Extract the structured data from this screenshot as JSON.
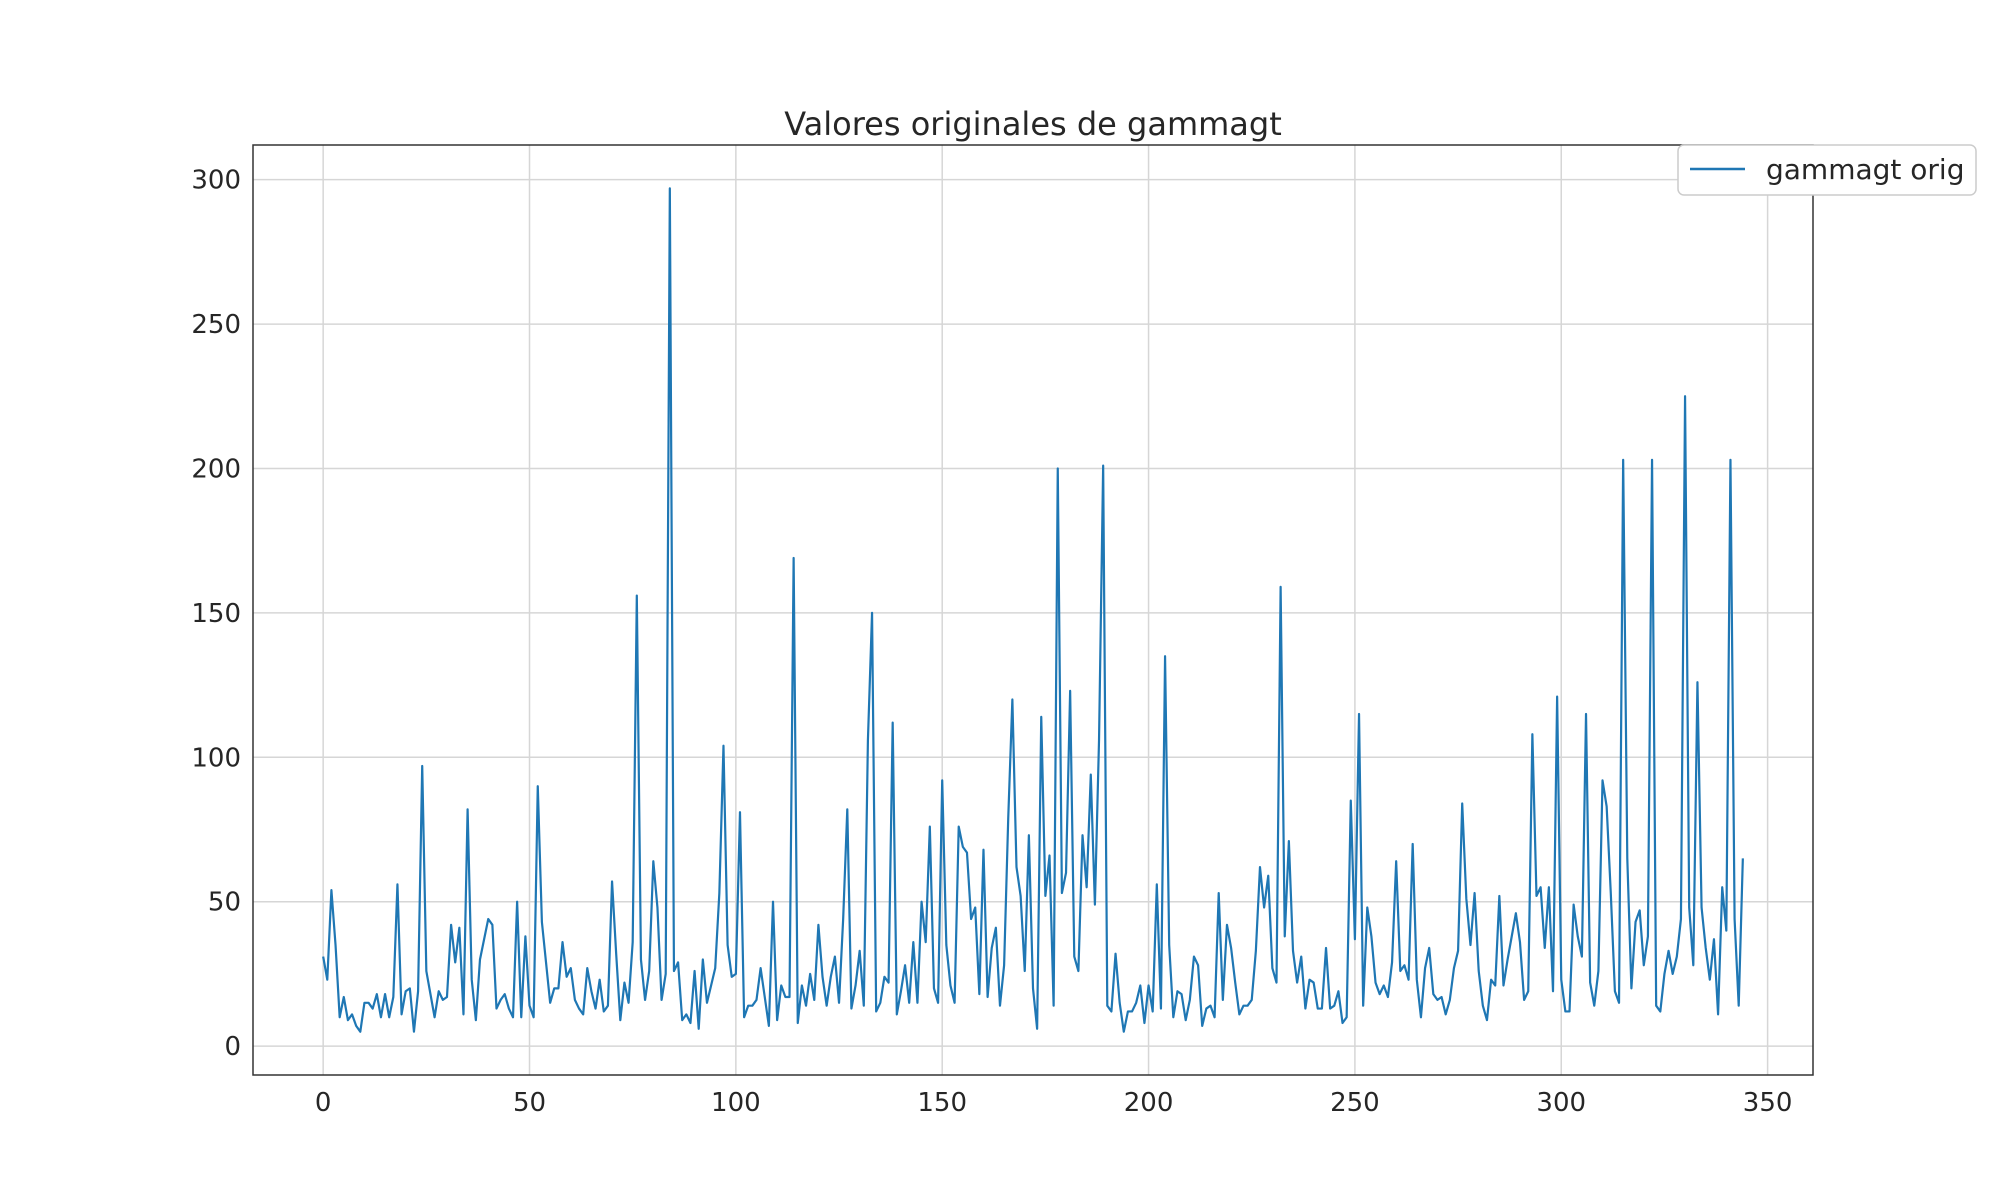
{
  "chart_data": {
    "type": "line",
    "title": "Valores originales de gammagt",
    "xlabel": "",
    "ylabel": "",
    "xlim": [
      -17,
      361
    ],
    "ylim": [
      -10,
      312
    ],
    "xticks": [
      0,
      50,
      100,
      150,
      200,
      250,
      300,
      350
    ],
    "yticks": [
      0,
      50,
      100,
      150,
      200,
      250,
      300
    ],
    "grid": true,
    "legend": {
      "placement": "top-right",
      "entries": [
        "gammagt orig"
      ]
    },
    "series": [
      {
        "name": "gammagt orig",
        "color": "#1f77b4",
        "x_start": 0,
        "x_step": 1,
        "values": [
          31,
          23,
          54,
          35,
          10,
          17,
          9,
          11,
          7,
          5,
          15,
          15,
          13,
          18,
          10,
          18,
          10,
          17,
          56,
          11,
          19,
          20,
          5,
          19,
          97,
          26,
          18,
          10,
          19,
          16,
          17,
          42,
          29,
          41,
          11,
          82,
          23,
          9,
          30,
          37,
          44,
          42,
          13,
          16,
          18,
          13,
          10,
          50,
          10,
          38,
          14,
          10,
          90,
          43,
          29,
          15,
          20,
          20,
          36,
          24,
          27,
          16,
          13,
          11,
          27,
          19,
          13,
          23,
          12,
          14,
          57,
          32,
          9,
          22,
          15,
          36,
          156,
          30,
          16,
          26,
          64,
          48,
          16,
          25,
          297,
          26,
          29,
          9,
          11,
          8,
          26,
          6,
          30,
          15,
          21,
          27,
          53,
          104,
          35,
          24,
          25,
          81,
          10,
          14,
          14,
          16,
          27,
          17,
          7,
          50,
          9,
          21,
          17,
          17,
          169,
          8,
          21,
          14,
          25,
          16,
          42,
          24,
          14,
          24,
          31,
          15,
          44,
          82,
          13,
          21,
          33,
          14,
          106,
          150,
          12,
          15,
          24,
          22,
          112,
          11,
          19,
          28,
          15,
          36,
          15,
          50,
          36,
          76,
          20,
          15,
          92,
          35,
          21,
          15,
          76,
          69,
          67,
          44,
          48,
          18,
          68,
          17,
          34,
          41,
          14,
          28,
          79,
          120,
          62,
          52,
          26,
          73,
          20,
          6,
          114,
          52,
          66,
          14,
          200,
          53,
          60,
          123,
          31,
          26,
          73,
          55,
          94,
          49,
          106,
          201,
          14,
          12,
          32,
          15,
          5,
          12,
          12,
          15,
          21,
          8,
          21,
          12,
          56,
          13,
          135,
          35,
          10,
          19,
          18,
          9,
          16,
          31,
          28,
          7,
          13,
          14,
          10,
          53,
          16,
          42,
          34,
          22,
          11,
          14,
          14,
          16,
          33,
          62,
          48,
          59,
          27,
          22,
          159,
          38,
          71,
          33,
          22,
          31,
          13,
          23,
          22,
          13,
          13,
          34,
          13,
          14,
          19,
          8,
          10,
          85,
          37,
          115,
          14,
          48,
          38,
          22,
          18,
          21,
          17,
          29,
          64,
          26,
          28,
          23,
          70,
          23,
          10,
          27,
          34,
          18,
          16,
          17,
          11,
          16,
          27,
          33,
          84,
          51,
          35,
          53,
          26,
          14,
          9,
          23,
          21,
          52,
          21,
          30,
          38,
          46,
          36,
          16,
          19,
          108,
          52,
          55,
          34,
          55,
          19,
          121,
          23,
          12,
          12,
          49,
          38,
          31,
          115,
          22,
          14,
          26,
          92,
          83,
          53,
          19,
          15,
          203,
          65,
          20,
          43,
          47,
          28,
          38,
          203,
          14,
          12,
          25,
          33,
          25,
          31,
          44,
          225,
          48,
          28,
          126,
          48,
          34,
          23,
          37,
          11,
          55,
          40,
          203,
          44,
          14,
          65
        ]
      }
    ]
  }
}
